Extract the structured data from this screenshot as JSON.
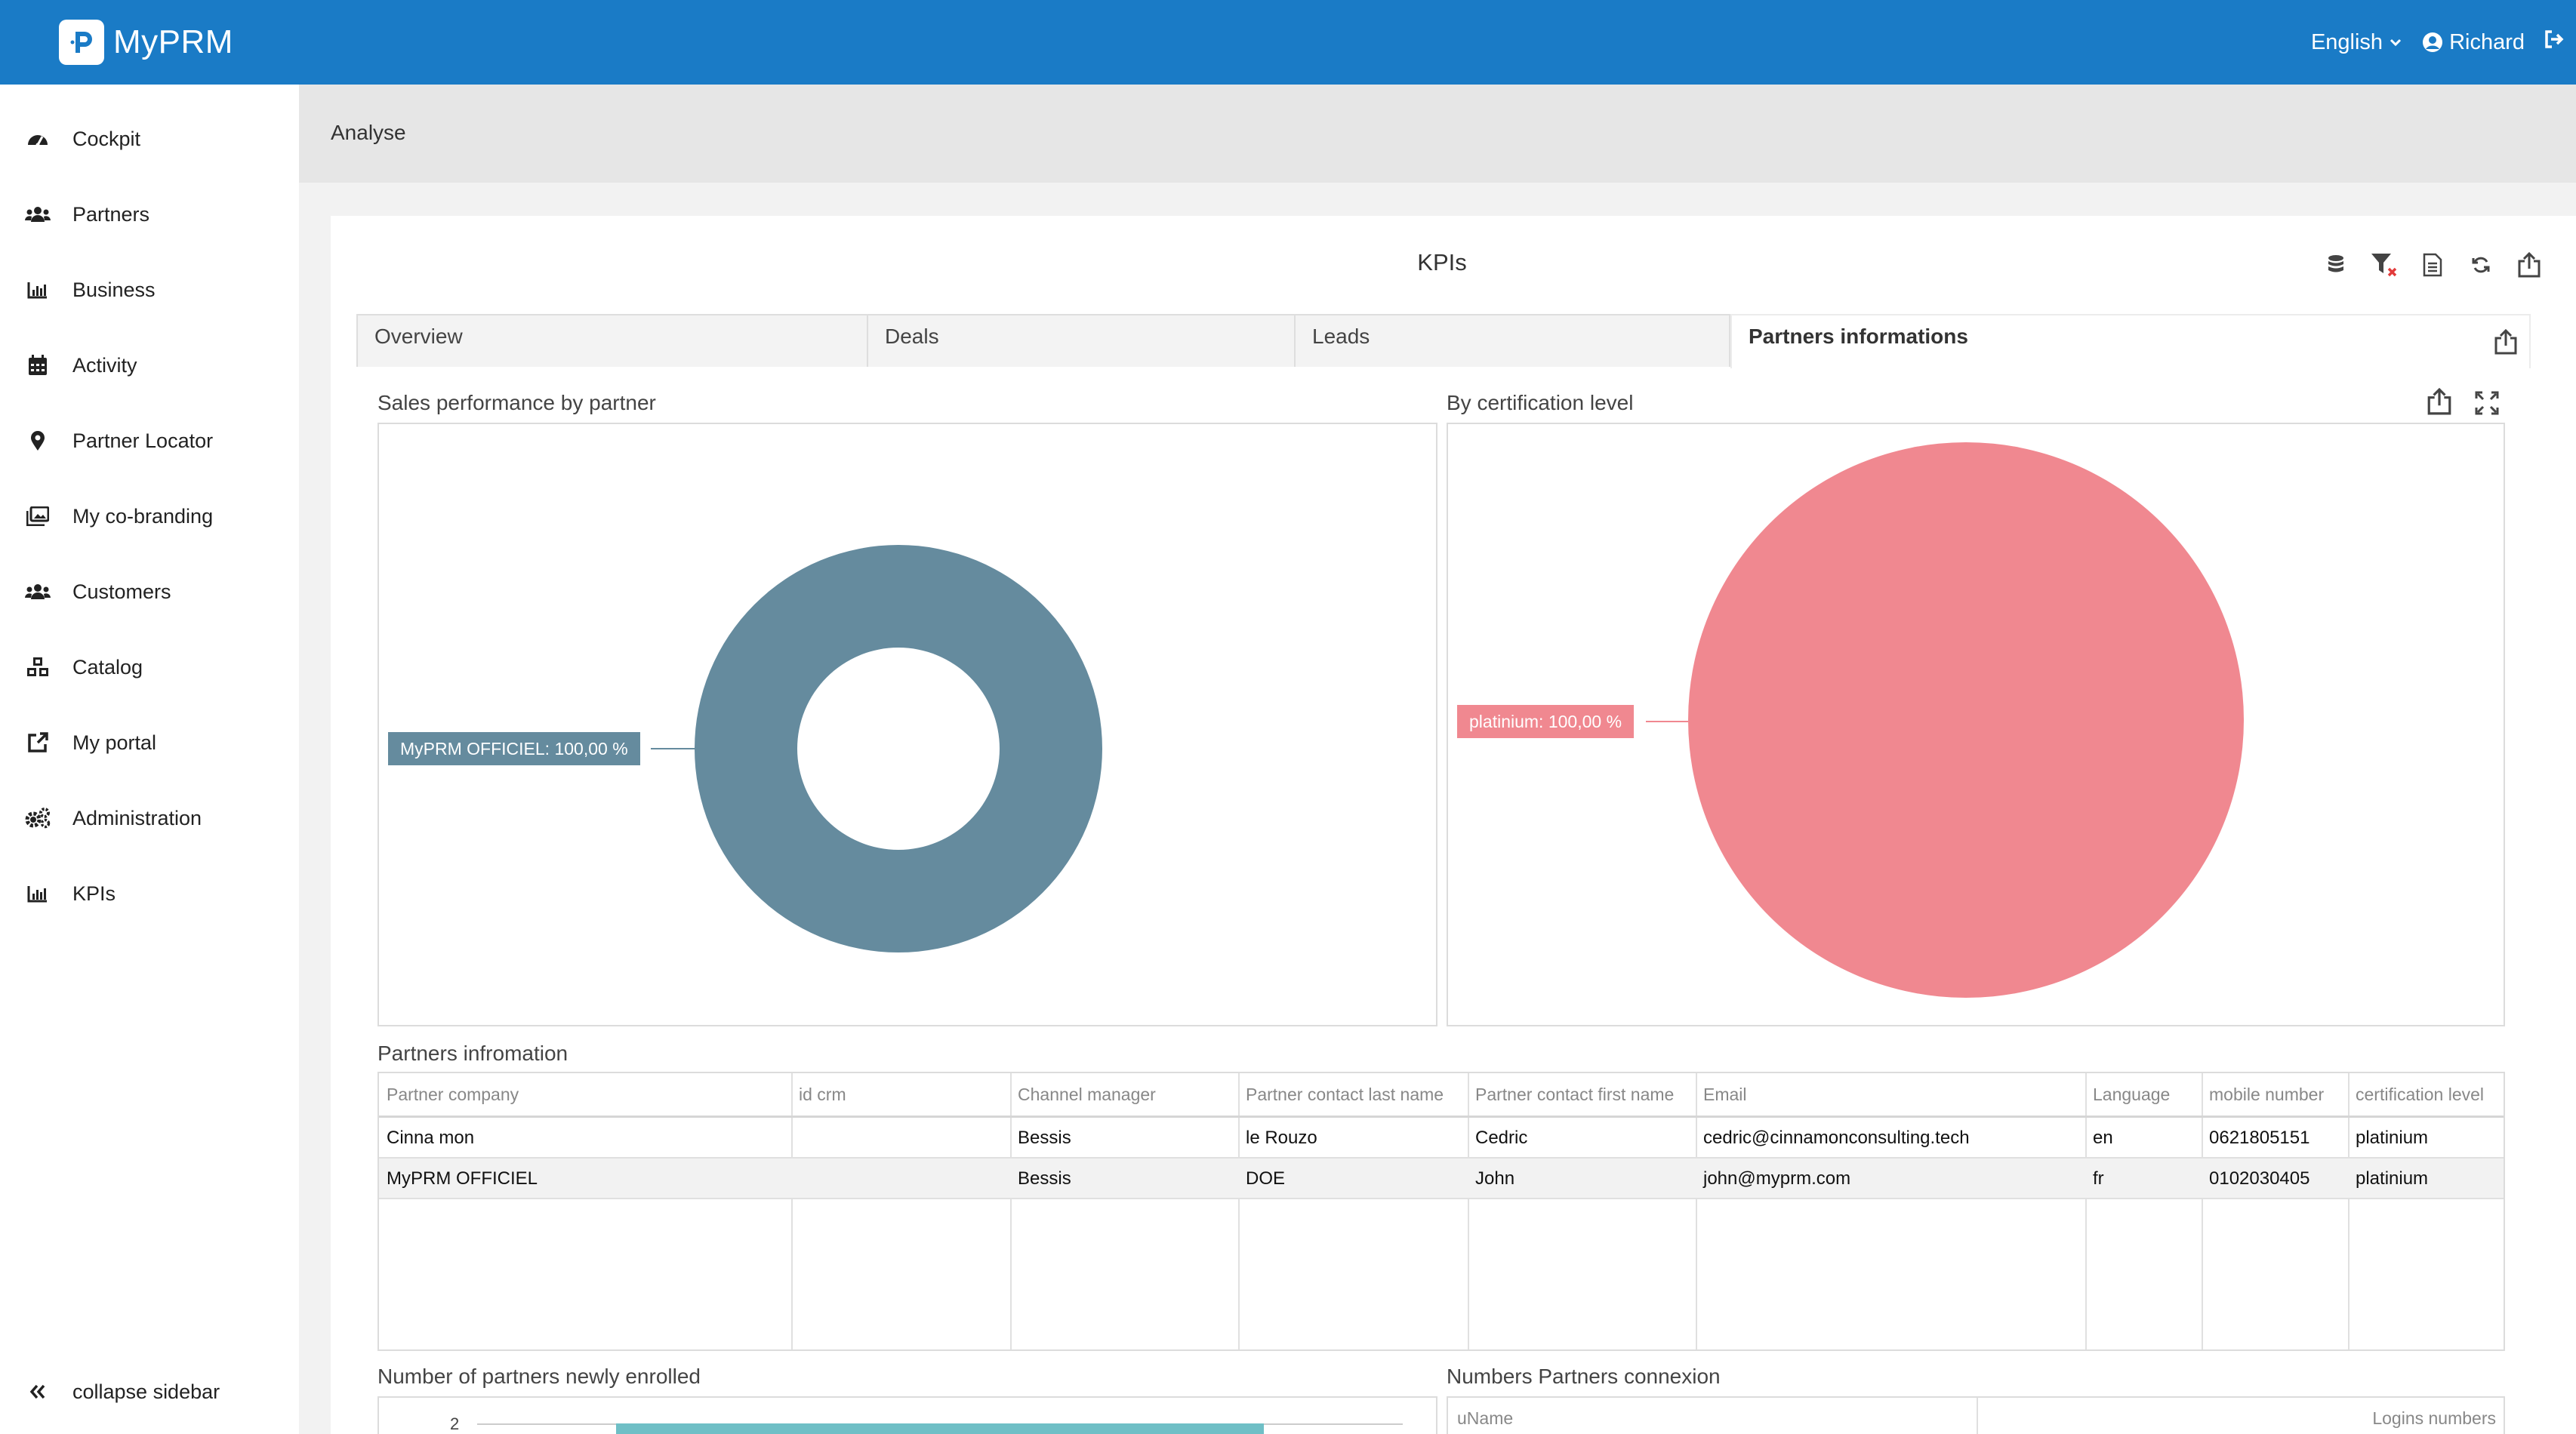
{
  "app": {
    "name": "MyPRM"
  },
  "topbar": {
    "language": "English",
    "user": "Richard"
  },
  "sidebar": {
    "items": [
      {
        "label": "Cockpit",
        "icon": "gauge-icon"
      },
      {
        "label": "Partners",
        "icon": "users-icon"
      },
      {
        "label": "Business",
        "icon": "bar-chart-icon"
      },
      {
        "label": "Activity",
        "icon": "calendar-icon"
      },
      {
        "label": "Partner Locator",
        "icon": "map-pin-icon"
      },
      {
        "label": "My co-branding",
        "icon": "images-icon"
      },
      {
        "label": "Customers",
        "icon": "users-icon"
      },
      {
        "label": "Catalog",
        "icon": "cubes-icon"
      },
      {
        "label": "My portal",
        "icon": "external-link-icon"
      },
      {
        "label": "Administration",
        "icon": "cogs-icon"
      },
      {
        "label": "KPIs",
        "icon": "bar-chart-icon"
      }
    ],
    "collapse_label": "collapse sidebar"
  },
  "breadcrumb": "Analyse",
  "card": {
    "title": "KPIs",
    "tools": [
      "database-icon",
      "filter-clear-icon",
      "file-icon",
      "refresh-icon",
      "export-icon"
    ]
  },
  "tabs": [
    {
      "label": "Overview"
    },
    {
      "label": "Deals"
    },
    {
      "label": "Leads"
    },
    {
      "label": "Partners informations",
      "active": true
    }
  ],
  "sections": {
    "sales_by_partner": "Sales performance by partner",
    "by_certification": "By certification level",
    "partners_info": "Partners infromation",
    "newly_enrolled": "Number of partners newly enrolled",
    "connexion": "Numbers Partners connexion"
  },
  "colors": {
    "topbar": "#1a7bc6",
    "donut": "#658b9e",
    "pie": "#f08890",
    "bar": "#6fbfc6"
  },
  "chart_data": [
    {
      "type": "pie",
      "title": "Sales performance by partner",
      "categories": [
        "MyPRM OFFICIEL"
      ],
      "values": [
        100
      ],
      "labels": [
        "MyPRM OFFICIEL: 100,00 %"
      ],
      "donut": true
    },
    {
      "type": "pie",
      "title": "By certification level",
      "categories": [
        "platinium"
      ],
      "values": [
        100
      ],
      "labels": [
        "platinium: 100,00 %"
      ]
    }
  ],
  "partners_table": {
    "columns": [
      "Partner company",
      "id crm",
      "Channel manager",
      "Partner contact last name",
      "Partner contact first name",
      "Email",
      "Language",
      "mobile number",
      "certification level"
    ],
    "rows": [
      [
        "Cinna mon",
        "",
        "Bessis",
        "le Rouzo",
        "Cedric",
        "cedric@cinnamonconsulting.tech",
        "en",
        "0621805151",
        "platinium"
      ],
      [
        "MyPRM OFFICIEL",
        "",
        "Bessis",
        "DOE",
        "John",
        "john@myprm.com",
        "fr",
        "0102030405",
        "platinium"
      ]
    ]
  },
  "enrolled_chart": {
    "y_tick": "2"
  },
  "connexion_table": {
    "columns": [
      "uName",
      "Logins numbers"
    ]
  }
}
